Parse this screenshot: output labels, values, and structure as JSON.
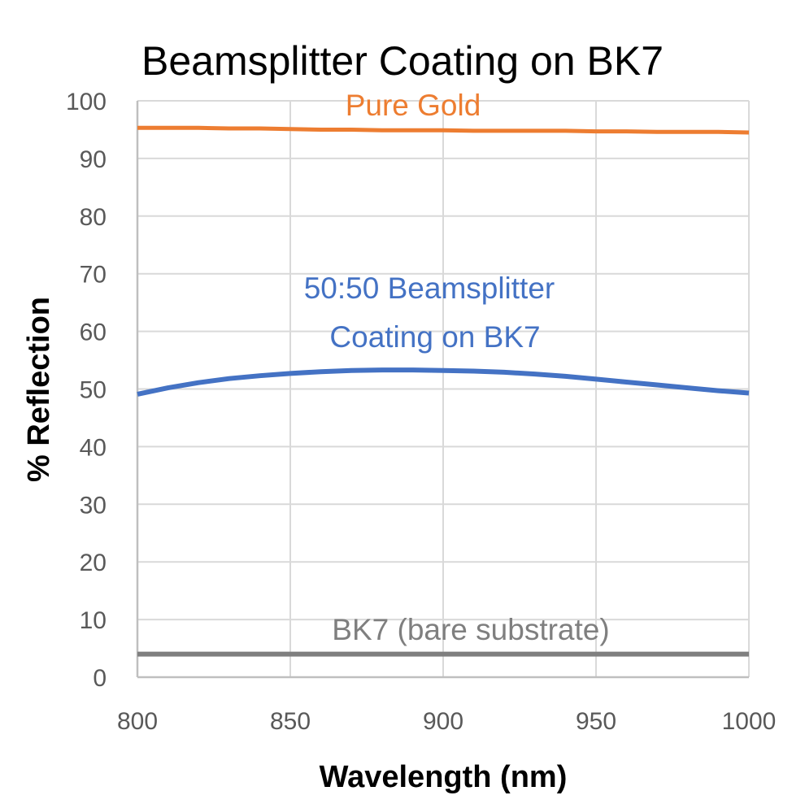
{
  "chart_data": {
    "type": "line",
    "title": "Beamsplitter Coating on BK7",
    "xlabel": "Wavelength (nm)",
    "ylabel": "% Reflection",
    "xlim": [
      800,
      1000
    ],
    "ylim": [
      0,
      100
    ],
    "x_ticks": [
      800,
      850,
      900,
      950,
      1000
    ],
    "y_ticks": [
      0,
      10,
      20,
      30,
      40,
      50,
      60,
      70,
      80,
      90,
      100
    ],
    "x_tick_labels": [
      "800",
      "850",
      "900",
      "950",
      "1000"
    ],
    "y_tick_labels": [
      "0",
      "10",
      "20",
      "30",
      "40",
      "50",
      "60",
      "70",
      "80",
      "90",
      "100"
    ],
    "grid": true,
    "legend": "none (inline annotations)",
    "series": [
      {
        "name": "Pure Gold",
        "color": "#ED7D31",
        "x": [
          800,
          810,
          820,
          830,
          840,
          850,
          860,
          870,
          880,
          890,
          900,
          910,
          920,
          930,
          940,
          950,
          960,
          970,
          980,
          990,
          1000
        ],
        "y": [
          95.3,
          95.3,
          95.3,
          95.2,
          95.2,
          95.1,
          95.0,
          95.0,
          94.9,
          94.9,
          94.9,
          94.8,
          94.8,
          94.8,
          94.8,
          94.7,
          94.7,
          94.6,
          94.6,
          94.6,
          94.5
        ]
      },
      {
        "name": "50:50 Beamsplitter Coating on BK7",
        "color": "#4472C4",
        "x": [
          800,
          810,
          820,
          830,
          840,
          850,
          860,
          870,
          880,
          890,
          900,
          910,
          920,
          930,
          940,
          950,
          960,
          970,
          980,
          990,
          1000
        ],
        "y": [
          49.1,
          50.2,
          51.1,
          51.8,
          52.3,
          52.7,
          53.0,
          53.2,
          53.3,
          53.3,
          53.2,
          53.1,
          52.9,
          52.6,
          52.2,
          51.7,
          51.2,
          50.7,
          50.2,
          49.7,
          49.3
        ]
      },
      {
        "name": "BK7 (bare substrate)",
        "color": "#7F7F7F",
        "x": [
          800,
          850,
          900,
          950,
          1000
        ],
        "y": [
          4.0,
          4.0,
          4.0,
          4.0,
          4.0
        ]
      }
    ],
    "annotations": [
      {
        "text": "Pure Gold",
        "color": "#ED7D31"
      },
      {
        "text": "50:50 Beamsplitter",
        "color": "#4472C4"
      },
      {
        "text": "Coating on BK7",
        "color": "#4472C4"
      },
      {
        "text": "BK7 (bare substrate)",
        "color": "#7F7F7F"
      }
    ]
  }
}
